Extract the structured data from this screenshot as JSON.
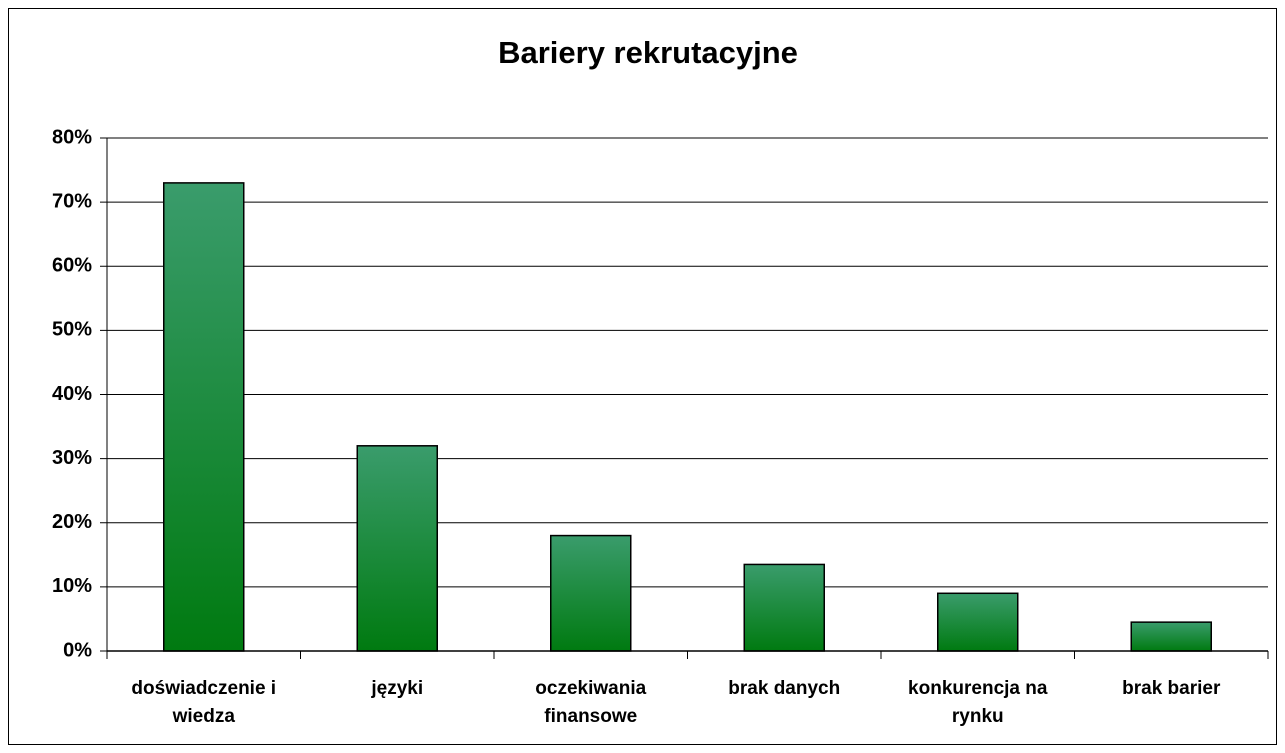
{
  "chart_data": {
    "type": "bar",
    "title": "Bariery rekrutacyjne",
    "categories": [
      "doświadczenie i wiedza",
      "języki",
      "oczekiwania finansowe",
      "brak danych",
      "konkurencja na rynku",
      "brak barier"
    ],
    "values": [
      73,
      32,
      18,
      13.5,
      9,
      4.5
    ],
    "color": "#1f8a3c",
    "ylim": [
      0,
      80
    ],
    "yticks": [
      {
        "value": 0,
        "label": "0%"
      },
      {
        "value": 10,
        "label": "10%"
      },
      {
        "value": 20,
        "label": "20%"
      },
      {
        "value": 30,
        "label": "30%"
      },
      {
        "value": 40,
        "label": "40%"
      },
      {
        "value": 50,
        "label": "50%"
      },
      {
        "value": 60,
        "label": "60%"
      },
      {
        "value": 70,
        "label": "70%"
      },
      {
        "value": 80,
        "label": "80%"
      }
    ],
    "grid": true
  }
}
